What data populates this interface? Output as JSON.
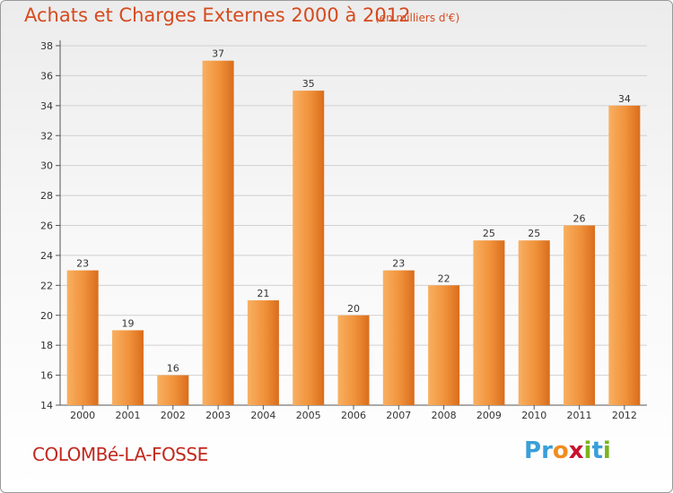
{
  "header": {
    "title": "Achats et Charges Externes 2000 à 2012",
    "subtitle": "(en milliers d'€)"
  },
  "footer": {
    "town": "COLOMBé-LA-FOSSE",
    "brand_letters": [
      "P",
      "r",
      "o",
      "x",
      "i",
      "t",
      "i"
    ],
    "brand_colors": [
      "#3a9fd8",
      "#3a9fd8",
      "#f08c1e",
      "#c8102e",
      "#7ab51d",
      "#3a9fd8",
      "#7ab51d"
    ]
  },
  "chart_data": {
    "type": "bar",
    "title": "Achats et Charges Externes 2000 à 2012",
    "subtitle": "(en milliers d'€)",
    "categories": [
      "2000",
      "2001",
      "2002",
      "2003",
      "2004",
      "2005",
      "2006",
      "2007",
      "2008",
      "2009",
      "2010",
      "2011",
      "2012"
    ],
    "values": [
      23,
      19,
      16,
      37,
      21,
      35,
      20,
      23,
      22,
      25,
      25,
      26,
      34
    ],
    "ylim": [
      14,
      38
    ],
    "yticks": [
      14,
      16,
      18,
      20,
      22,
      24,
      26,
      28,
      30,
      32,
      34,
      36,
      38
    ],
    "grid": "horizontal",
    "bar_color": "#f0913a",
    "bar_color_light": "#f8b061",
    "bar_color_dark": "#d96d1c"
  }
}
